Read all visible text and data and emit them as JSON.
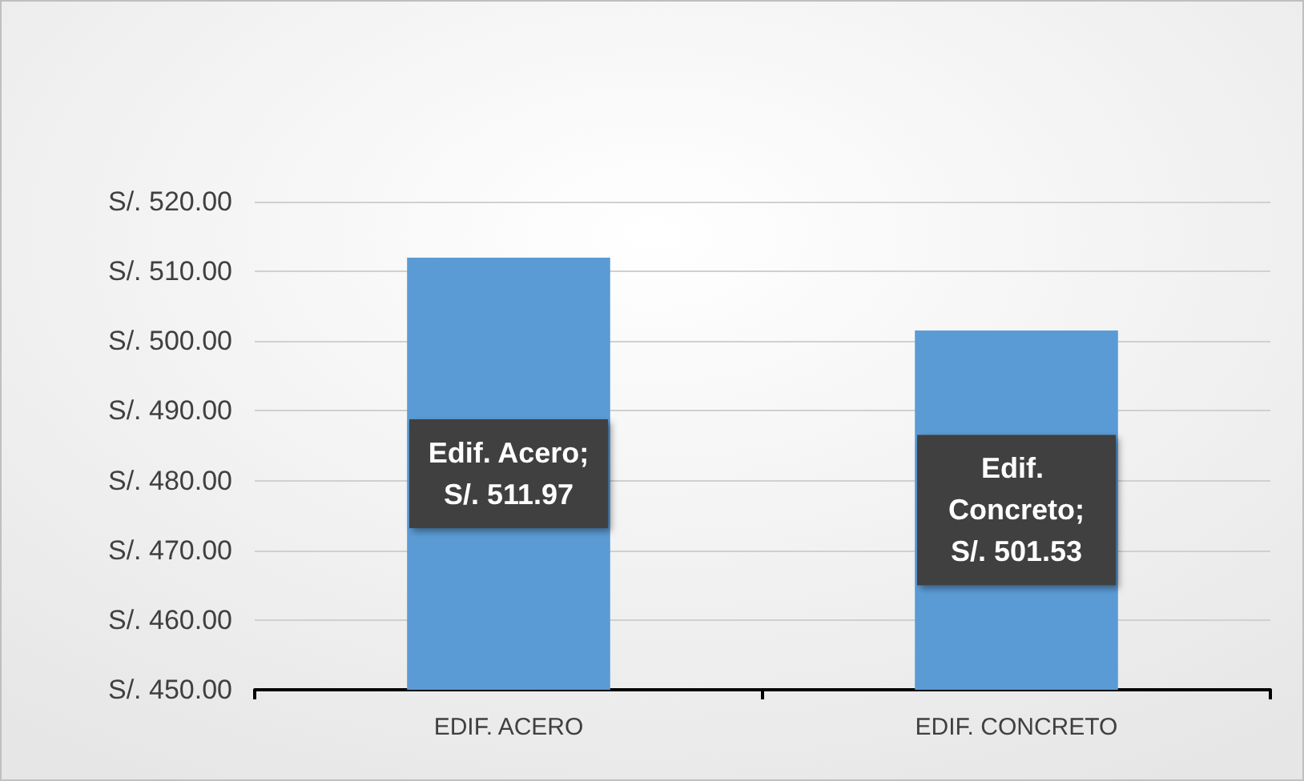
{
  "chart_data": {
    "type": "bar",
    "categories": [
      "EDIF. ACERO",
      "EDIF. CONCRETO"
    ],
    "values": [
      511.97,
      501.53
    ],
    "color": "#5b9bd5",
    "value_labels": [
      "Edif. Acero; S/. 511.97",
      "Edif. Concreto; S/. 501.53"
    ],
    "ylim": [
      450,
      520
    ],
    "yticks": [
      {
        "value": 450,
        "label": "S/. 450.00"
      },
      {
        "value": 460,
        "label": "S/. 460.00"
      },
      {
        "value": 470,
        "label": "S/. 470.00"
      },
      {
        "value": 480,
        "label": "S/. 480.00"
      },
      {
        "value": 490,
        "label": "S/. 490.00"
      },
      {
        "value": 500,
        "label": "S/. 500.00"
      },
      {
        "value": 510,
        "label": "S/. 510.00"
      },
      {
        "value": 520,
        "label": "S/. 520.00"
      }
    ],
    "grid": "y"
  }
}
